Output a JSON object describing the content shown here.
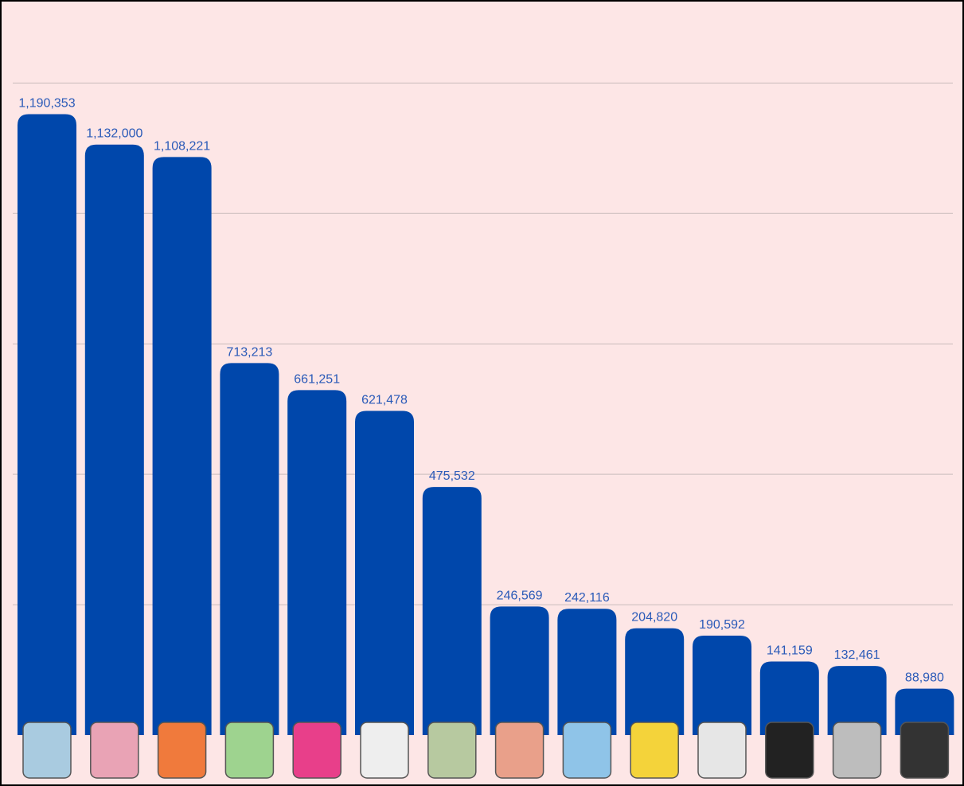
{
  "chart_data": {
    "type": "bar",
    "categories": [
      null,
      null,
      null,
      null,
      null,
      null,
      null,
      null,
      null,
      null,
      null,
      null,
      null,
      null
    ],
    "values": [
      1190353,
      1132000,
      1108221,
      713213,
      661251,
      621478,
      475532,
      246569,
      242116,
      204820,
      190592,
      141159,
      132461,
      88980
    ],
    "value_labels": [
      "1,190,353",
      "1,132,000",
      "1,108,221",
      "713,213",
      "661,251",
      "621,478",
      "475,532",
      "246,569",
      "242,116",
      "204,820",
      "190,592",
      "141,159",
      "132,461",
      "88,980"
    ],
    "color": "#0047ab",
    "ylim": [
      0,
      1400000
    ],
    "yticks": [
      250000,
      500000,
      750000,
      1000000,
      1250000
    ],
    "grid": true
  }
}
